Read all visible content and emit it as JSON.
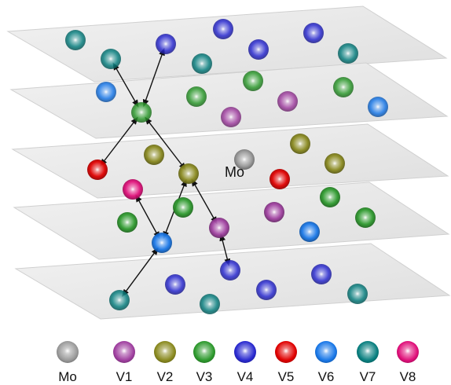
{
  "center_label": "Mo",
  "legend": [
    {
      "key": "Mo",
      "label": "Mo",
      "color": "#9a9a9a"
    },
    {
      "key": "V1",
      "label": "V1",
      "color": "#a040a0"
    },
    {
      "key": "V2",
      "label": "V2",
      "color": "#8a8a20"
    },
    {
      "key": "V3",
      "label": "V3",
      "color": "#2e9a2e"
    },
    {
      "key": "V4",
      "label": "V4",
      "color": "#2a2ad0"
    },
    {
      "key": "V5",
      "label": "V5",
      "color": "#e00000"
    },
    {
      "key": "V6",
      "label": "V6",
      "color": "#1a78e8"
    },
    {
      "key": "V7",
      "label": "V7",
      "color": "#0a8080"
    },
    {
      "key": "V8",
      "label": "V8",
      "color": "#e0107a"
    }
  ],
  "layers": [
    {
      "name": "layer-1",
      "atoms": [
        "V7",
        "V7",
        "V4",
        "V4",
        "V4",
        "V4",
        "V7",
        "V7"
      ]
    },
    {
      "name": "layer-2",
      "atoms": [
        "V6",
        "V3",
        "V1",
        "V3",
        "V3",
        "V1",
        "V3",
        "V6"
      ]
    },
    {
      "name": "layer-3",
      "atoms": [
        "V5",
        "V2",
        "V8",
        "V2",
        "Mo",
        "V5",
        "V2",
        "V2"
      ]
    },
    {
      "name": "layer-4",
      "atoms": [
        "V3",
        "V3",
        "V6",
        "V1",
        "V1",
        "V6",
        "V3",
        "V3"
      ]
    },
    {
      "name": "layer-5",
      "atoms": [
        "V7",
        "V4",
        "V7",
        "V4",
        "V4",
        "V4",
        "V7"
      ]
    }
  ],
  "hops": [
    [
      "l2-a3",
      "l1-a1"
    ],
    [
      "l2-a3",
      "l1-a2"
    ],
    [
      "l2-a3",
      "l3-a0"
    ],
    [
      "l2-a3",
      "l3-a3"
    ],
    [
      "l3-a3",
      "l4-a2"
    ],
    [
      "l3-a3",
      "l4-a3"
    ],
    [
      "l3-a2",
      "l4-a2"
    ],
    [
      "l4-a2",
      "l5-a0"
    ],
    [
      "l4-a3",
      "l5-a2"
    ]
  ]
}
